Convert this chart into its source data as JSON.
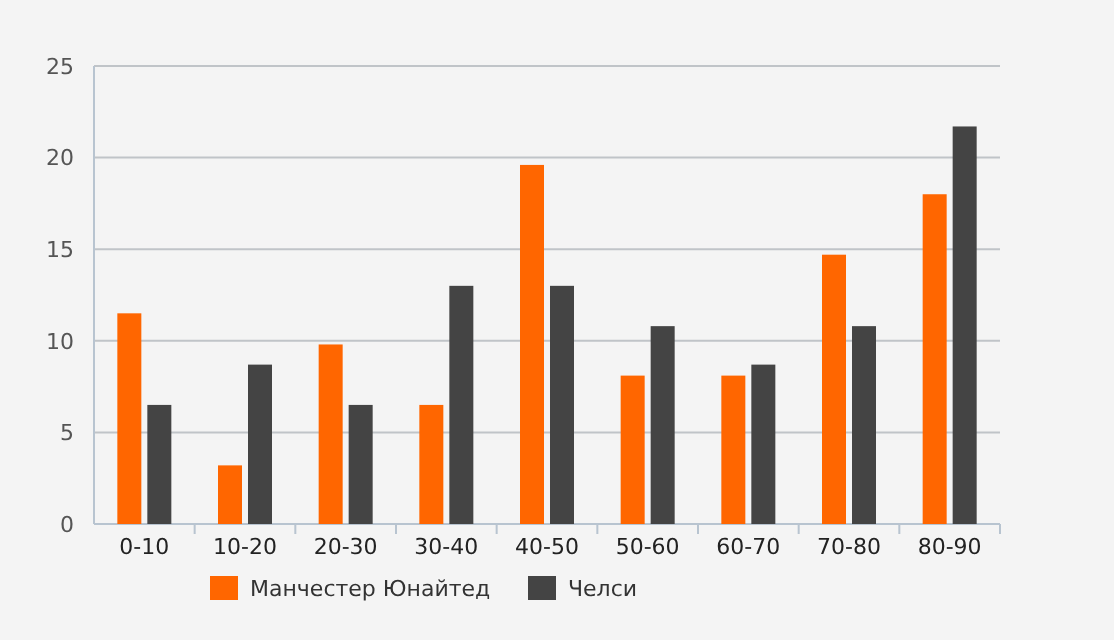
{
  "chart_data": {
    "type": "bar",
    "categories": [
      "0-10",
      "10-20",
      "20-30",
      "30-40",
      "40-50",
      "50-60",
      "60-70",
      "70-80",
      "80-90"
    ],
    "series": [
      {
        "name": "Манчестер Юнайтед",
        "color": "#ff6600",
        "values": [
          11.5,
          3.2,
          9.8,
          6.5,
          19.6,
          8.1,
          8.1,
          14.7,
          18.0
        ]
      },
      {
        "name": "Челси",
        "color": "#444444",
        "values": [
          6.5,
          8.7,
          6.5,
          13.0,
          13.0,
          10.8,
          8.7,
          10.8,
          21.7
        ]
      }
    ],
    "ylim": [
      0,
      25
    ],
    "yticks": [
      0,
      5,
      10,
      15,
      20,
      25
    ],
    "grid": "y",
    "legend": "bottom"
  }
}
